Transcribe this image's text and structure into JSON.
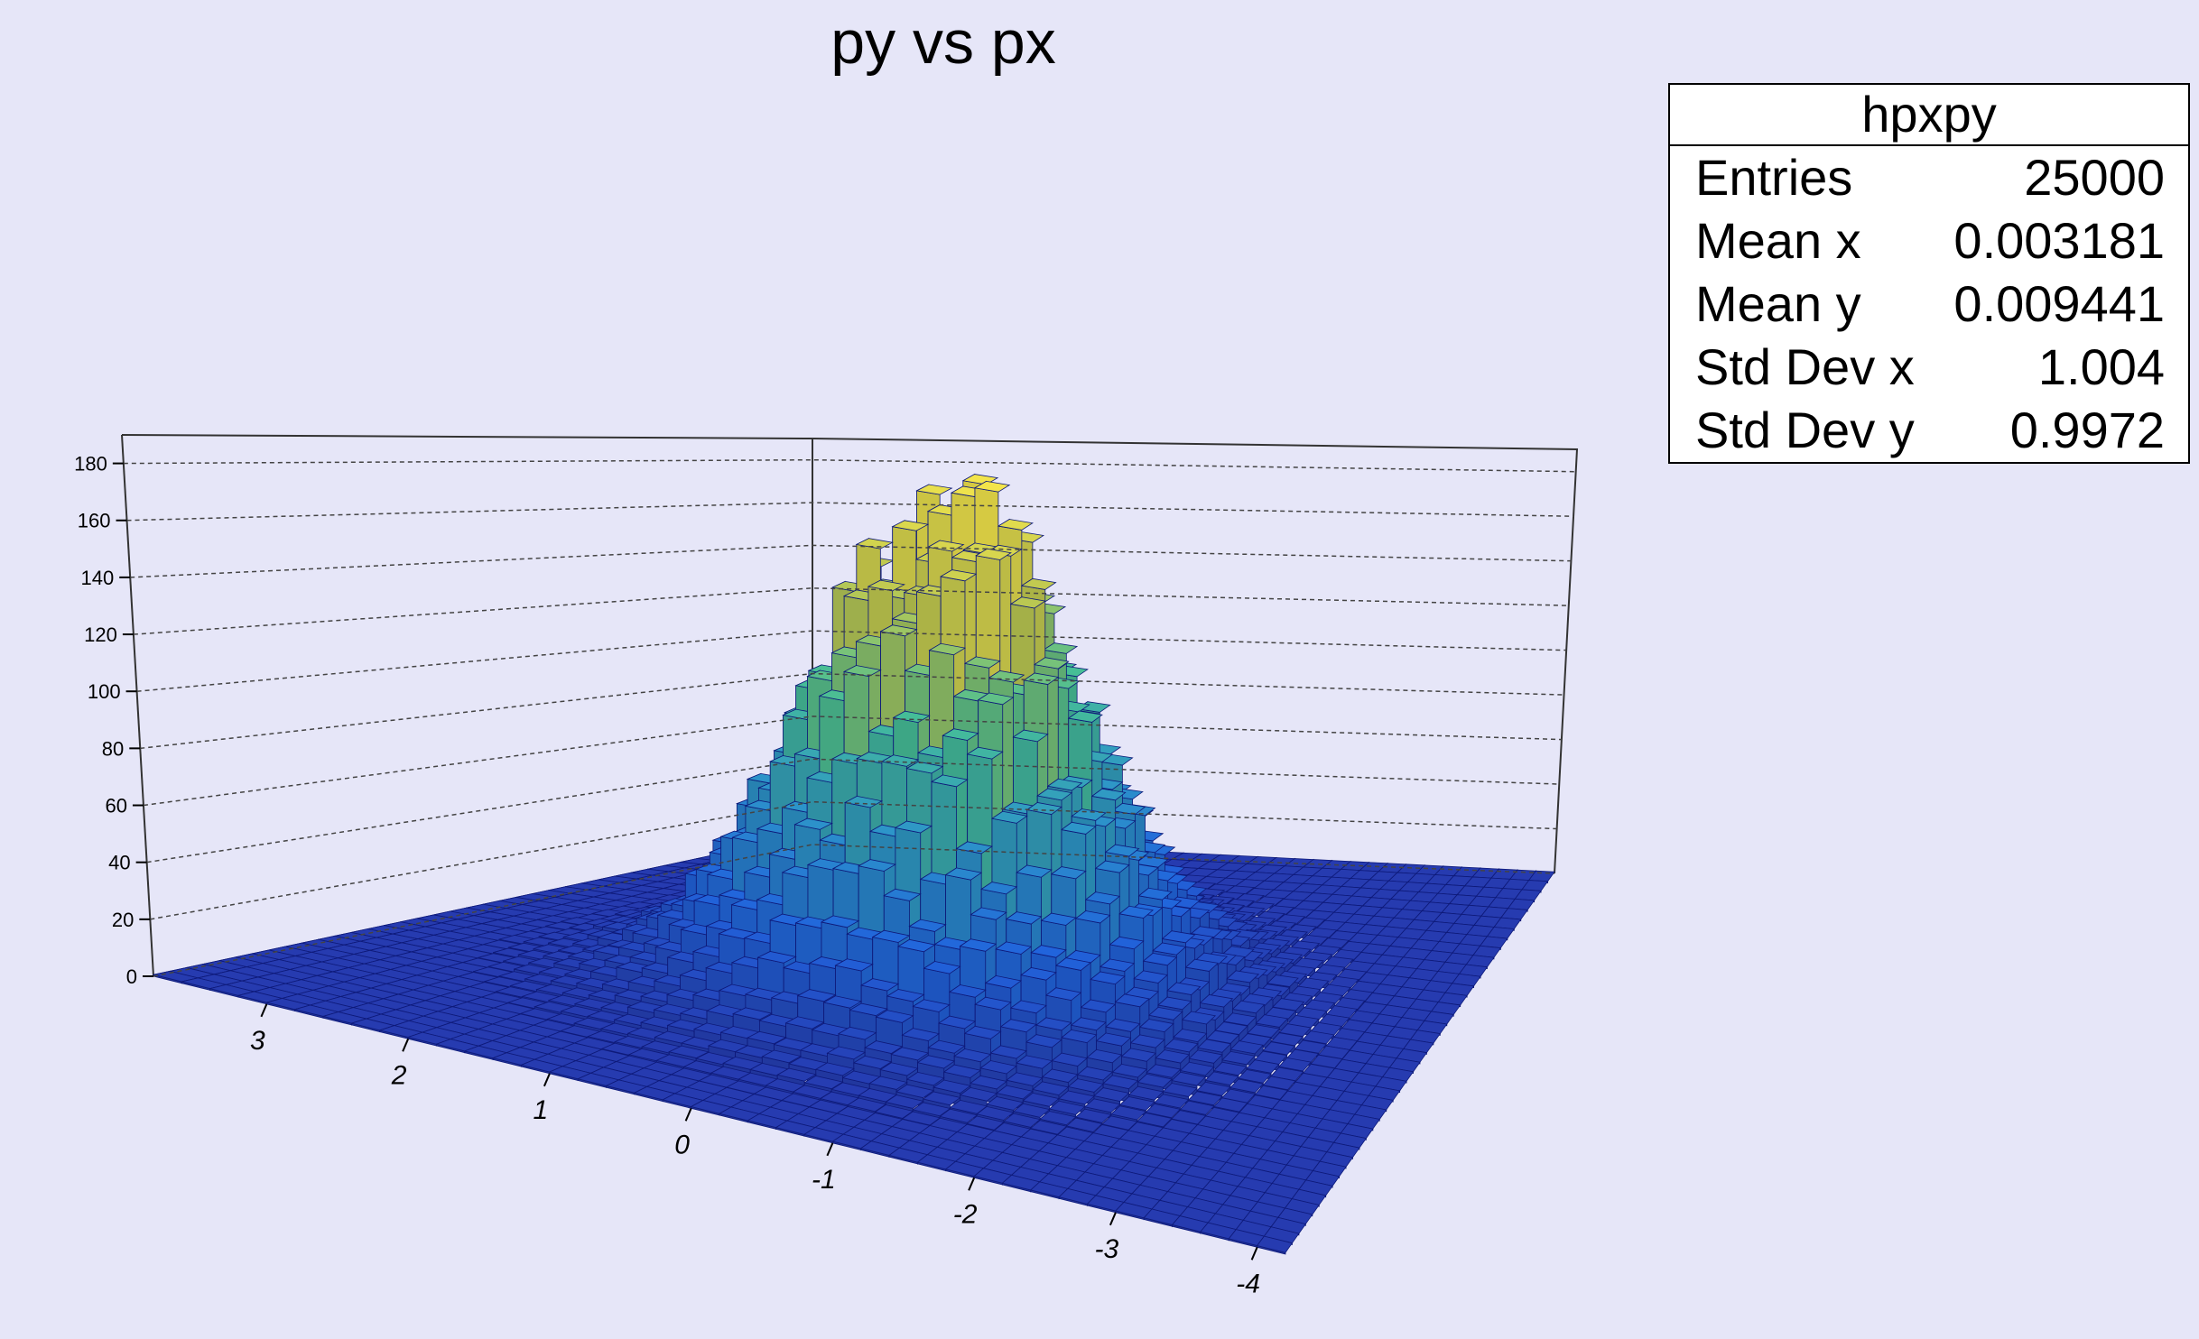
{
  "colors": {
    "background": "#e6e6f8",
    "floor_bar": "#2a3fb0",
    "bar_edge": "#0e1a7a",
    "peak": "#f5e64a"
  },
  "stats_box": {
    "name": "hpxpy",
    "rows": [
      {
        "label": "Entries",
        "value": "25000"
      },
      {
        "label": "Mean x",
        "value": "0.003181"
      },
      {
        "label": "Mean y",
        "value": "0.009441"
      },
      {
        "label": "Std Dev x",
        "value": "1.004"
      },
      {
        "label": "Std Dev y",
        "value": "0.9972"
      }
    ]
  },
  "chart_data": {
    "type": "lego",
    "title": "py vs px",
    "xlabel": "",
    "ylabel": "",
    "zlabel": "",
    "zlim": [
      0,
      190
    ],
    "z_ticks": [
      "0",
      "20",
      "40",
      "60",
      "80",
      "100",
      "120",
      "140",
      "160",
      "180"
    ],
    "y_ticks": [
      "3",
      "2",
      "1",
      "0",
      "-1",
      "-2",
      "-3",
      "-4"
    ],
    "bins": 40,
    "range": [
      -4,
      4
    ],
    "peak_count": 180,
    "grid": true,
    "palette": "viridis"
  }
}
